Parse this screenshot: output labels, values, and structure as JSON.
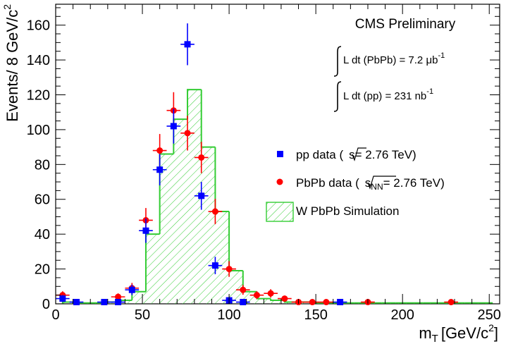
{
  "chart_data": {
    "type": "scatter",
    "title": "",
    "xlabel_main": "m",
    "xlabel_sub": "T",
    "xlabel_unit": "[GeV/c",
    "xlabel_sup": "2",
    "xlabel_close": "]",
    "ylabel_main": "Events/ 8 GeV/c",
    "ylabel_sup": "2",
    "xlim": [
      0,
      256
    ],
    "ylim": [
      0,
      172
    ],
    "x_ticks": [
      0,
      50,
      100,
      150,
      200,
      250
    ],
    "y_ticks": [
      0,
      20,
      40,
      60,
      80,
      100,
      120,
      140,
      160
    ],
    "annotations": {
      "cms": "CMS Preliminary",
      "lumi_pbpb_prefix": "L dt (PbPb) = 7.2 ",
      "lumi_pbpb_unit": "μb",
      "lumi_pbpb_exp": "-1",
      "lumi_pp_prefix": "L dt (pp) = 231 nb",
      "lumi_pp_exp": "-1"
    },
    "legend": {
      "placement": "right",
      "pp_prefix": "pp data (",
      "pp_s": "s",
      "pp_suffix": "= 2.76 TeV)",
      "pbpb_prefix": "PbPb data (",
      "pbpb_s": "s",
      "pbpb_sub": "NN",
      "pbpb_suffix": "= 2.76 TeV)",
      "sim": "W PbPb Simulation"
    },
    "colors": {
      "pp": "#0000ff",
      "pbpb": "#ff0000",
      "sim": "#33cc33"
    },
    "bin_width": 8,
    "simulation_edges": [
      4,
      12,
      20,
      28,
      36,
      44,
      52,
      60,
      68,
      76,
      84,
      92,
      100,
      108,
      116,
      124,
      132,
      140,
      148,
      156,
      164,
      172,
      180,
      188,
      196,
      204,
      212,
      220,
      228,
      236,
      244,
      252
    ],
    "simulation_values": [
      1,
      0.5,
      0.5,
      1,
      2,
      7,
      40,
      86,
      106,
      123,
      90,
      53,
      19,
      7,
      3,
      2,
      1,
      1,
      0.5,
      0.5,
      0.5,
      0.5,
      0.5,
      0.5,
      0.5,
      0.5,
      0.5,
      0.5,
      0.5,
      0.5,
      0.5
    ],
    "series": [
      {
        "key": "pp",
        "x": [
          4,
          12,
          28,
          36,
          44,
          52,
          60,
          68,
          76,
          84,
          92,
          100,
          108,
          164
        ],
        "y": [
          3,
          1,
          1,
          1,
          8,
          42,
          77,
          102,
          149,
          62,
          22,
          2,
          1,
          1
        ],
        "err": [
          2,
          1,
          1,
          1,
          3,
          7,
          9,
          10,
          12,
          8,
          5,
          1.5,
          1,
          1
        ]
      },
      {
        "key": "pbpb",
        "x": [
          4,
          36,
          44,
          52,
          60,
          68,
          76,
          84,
          92,
          100,
          108,
          116,
          124,
          132,
          140,
          148,
          156,
          180,
          228
        ],
        "y": [
          5,
          4,
          9,
          48,
          88,
          111,
          98,
          84,
          53,
          20,
          8,
          5,
          6,
          3,
          1,
          1,
          1,
          1,
          1
        ],
        "err": [
          2.2,
          2,
          3,
          7,
          9.5,
          10.5,
          10,
          9,
          7.3,
          4.5,
          2.8,
          2.2,
          2.4,
          1.7,
          1,
          1,
          1,
          1,
          1
        ]
      }
    ]
  }
}
